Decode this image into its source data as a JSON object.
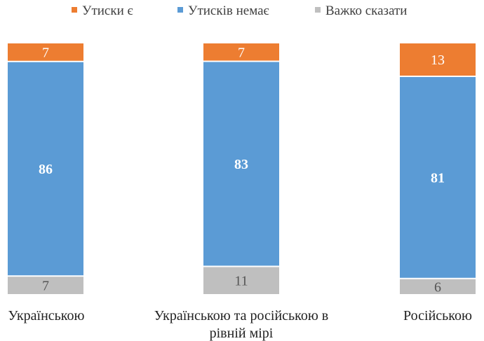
{
  "chart_data": {
    "type": "bar",
    "stacked": true,
    "percent_stacked": true,
    "categories": [
      [
        "Українською"
      ],
      [
        "Українською та російською в",
        "рівній мірі"
      ],
      [
        "Російською"
      ]
    ],
    "series": [
      {
        "name": "Утиски є",
        "color": "#ED7D31",
        "values": [
          7,
          7,
          13
        ],
        "label_color": "#ffffff",
        "label_bold": false
      },
      {
        "name": "Утисків немає",
        "color": "#5B9BD5",
        "values": [
          86,
          83,
          81
        ],
        "label_color": "#ffffff",
        "label_bold": true
      },
      {
        "name": "Важко сказати",
        "color": "#BFBFBF",
        "values": [
          7,
          11,
          6
        ],
        "label_color": "#555555",
        "label_bold": false
      }
    ],
    "legend_position": "top",
    "grid": false,
    "title": "",
    "xlabel": "",
    "ylabel": ""
  }
}
